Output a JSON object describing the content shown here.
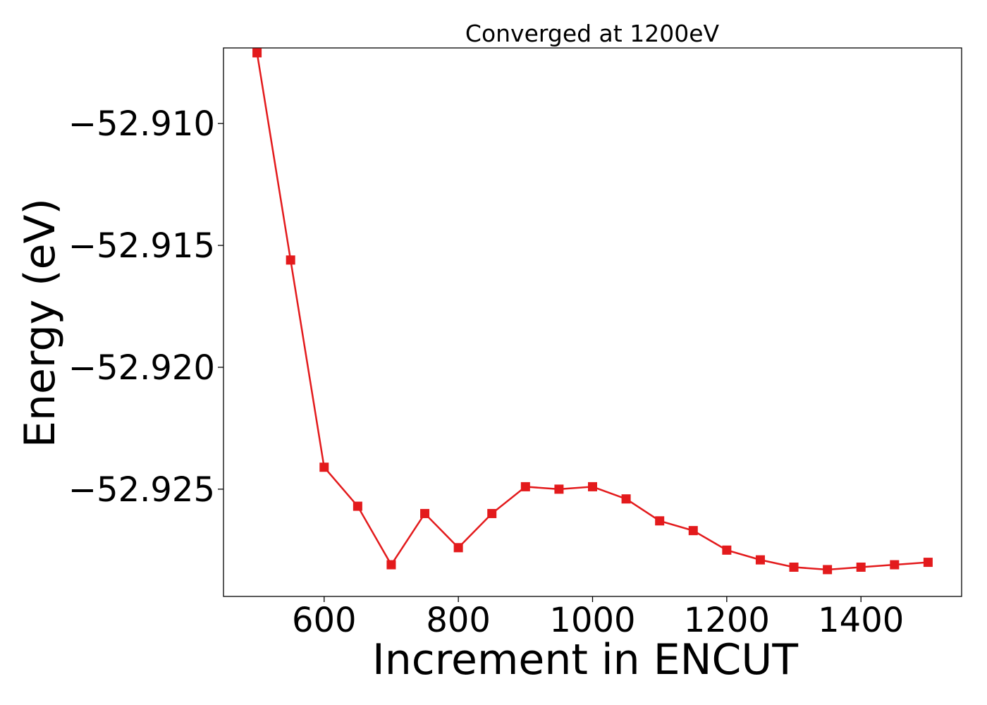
{
  "chart_data": {
    "type": "line",
    "title": "Converged at 1200eV",
    "xlabel": "Increment in ENCUT",
    "ylabel": "Energy (eV)",
    "xlim": [
      450,
      1550
    ],
    "ylim": [
      -52.9294,
      -52.9069
    ],
    "x_ticks": [
      {
        "value": 600,
        "label": "600"
      },
      {
        "value": 800,
        "label": "800"
      },
      {
        "value": 1000,
        "label": "1000"
      },
      {
        "value": 1200,
        "label": "1200"
      },
      {
        "value": 1400,
        "label": "1400"
      }
    ],
    "y_ticks": [
      {
        "value": -52.91,
        "label": "−52.910"
      },
      {
        "value": -52.915,
        "label": "−52.915"
      },
      {
        "value": -52.92,
        "label": "−52.920"
      },
      {
        "value": -52.925,
        "label": "−52.925"
      }
    ],
    "grid": false,
    "line_color": "#e31a1c",
    "marker": "square",
    "series": [
      {
        "x": [
          500,
          550,
          600,
          650,
          700,
          750,
          800,
          850,
          900,
          950,
          1000,
          1050,
          1100,
          1150,
          1200,
          1250,
          1300,
          1350,
          1400,
          1450,
          1500
        ],
        "y": [
          -52.9071,
          -52.9156,
          -52.9241,
          -52.9257,
          -52.9281,
          -52.926,
          -52.9274,
          -52.926,
          -52.9249,
          -52.925,
          -52.9249,
          -52.9254,
          -52.9263,
          -52.9267,
          -52.9275,
          -52.9279,
          -52.9282,
          -52.9283,
          -52.9282,
          -52.9281,
          -52.928
        ]
      }
    ]
  }
}
